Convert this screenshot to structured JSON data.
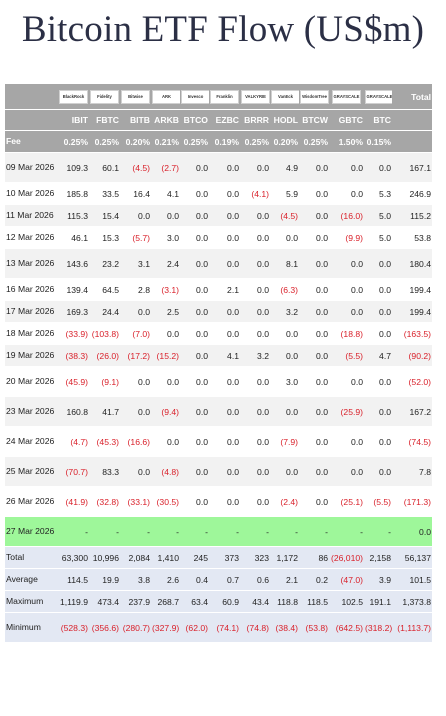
{
  "title": "Bitcoin ETF Flow (US$m)",
  "chart_data": {
    "type": "table",
    "header_total": "Total",
    "fee_label": "Fee",
    "columns": [
      {
        "ticker": "IBIT",
        "logo": "BlackRock",
        "fee": "0.25%"
      },
      {
        "ticker": "FBTC",
        "logo": "Fidelity",
        "fee": "0.25%"
      },
      {
        "ticker": "BITB",
        "logo": "Bitwise",
        "fee": "0.20%"
      },
      {
        "ticker": "ARKB",
        "logo": "ARK",
        "fee": "0.21%"
      },
      {
        "ticker": "BTCO",
        "logo": "Invesco",
        "fee": "0.25%"
      },
      {
        "ticker": "EZBC",
        "logo": "Franklin",
        "fee": "0.19%"
      },
      {
        "ticker": "BRRR",
        "logo": "VALKYRIE",
        "fee": "0.25%"
      },
      {
        "ticker": "HODL",
        "logo": "VanEck",
        "fee": "0.20%"
      },
      {
        "ticker": "BTCW",
        "logo": "WisdomTree",
        "fee": "0.25%"
      },
      {
        "ticker": "GBTC",
        "logo": "GRAYSCALE",
        "fee": "1.50%"
      },
      {
        "ticker": "BTC",
        "logo": "GRAYSCALE",
        "fee": "0.15%"
      }
    ],
    "rows": [
      {
        "date": "09 Mar 2026",
        "values": [
          "109.3",
          "60.1",
          "(4.5)",
          "(2.7)",
          "0.0",
          "0.0",
          "0.0",
          "4.9",
          "0.0",
          "0.0",
          "0.0"
        ],
        "total": "167.1"
      },
      {
        "date": "10 Mar 2026",
        "values": [
          "185.8",
          "33.5",
          "16.4",
          "4.1",
          "0.0",
          "0.0",
          "(4.1)",
          "5.9",
          "0.0",
          "0.0",
          "5.3"
        ],
        "total": "246.9"
      },
      {
        "date": "11 Mar 2026",
        "values": [
          "115.3",
          "15.4",
          "0.0",
          "0.0",
          "0.0",
          "0.0",
          "0.0",
          "(4.5)",
          "0.0",
          "(16.0)",
          "5.0"
        ],
        "total": "115.2"
      },
      {
        "date": "12 Mar 2026",
        "values": [
          "46.1",
          "15.3",
          "(5.7)",
          "3.0",
          "0.0",
          "0.0",
          "0.0",
          "0.0",
          "0.0",
          "(9.9)",
          "5.0"
        ],
        "total": "53.8"
      },
      {
        "date": "13 Mar 2026",
        "values": [
          "143.6",
          "23.2",
          "3.1",
          "2.4",
          "0.0",
          "0.0",
          "0.0",
          "8.1",
          "0.0",
          "0.0",
          "0.0"
        ],
        "total": "180.4"
      },
      {
        "date": "16 Mar 2026",
        "values": [
          "139.4",
          "64.5",
          "2.8",
          "(3.1)",
          "0.0",
          "2.1",
          "0.0",
          "(6.3)",
          "0.0",
          "0.0",
          "0.0"
        ],
        "total": "199.4"
      },
      {
        "date": "17 Mar 2026",
        "values": [
          "169.3",
          "24.4",
          "0.0",
          "2.5",
          "0.0",
          "0.0",
          "0.0",
          "3.2",
          "0.0",
          "0.0",
          "0.0"
        ],
        "total": "199.4"
      },
      {
        "date": "18 Mar 2026",
        "values": [
          "(33.9)",
          "(103.8)",
          "(7.0)",
          "0.0",
          "0.0",
          "0.0",
          "0.0",
          "0.0",
          "0.0",
          "(18.8)",
          "0.0"
        ],
        "total": "(163.5)"
      },
      {
        "date": "19 Mar 2026",
        "values": [
          "(38.3)",
          "(26.0)",
          "(17.2)",
          "(15.2)",
          "0.0",
          "4.1",
          "3.2",
          "0.0",
          "0.0",
          "(5.5)",
          "4.7"
        ],
        "total": "(90.2)"
      },
      {
        "date": "20 Mar 2026",
        "values": [
          "(45.9)",
          "(9.1)",
          "0.0",
          "0.0",
          "0.0",
          "0.0",
          "0.0",
          "3.0",
          "0.0",
          "0.0",
          "0.0"
        ],
        "total": "(52.0)"
      },
      {
        "date": "23 Mar 2026",
        "values": [
          "160.8",
          "41.7",
          "0.0",
          "(9.4)",
          "0.0",
          "0.0",
          "0.0",
          "0.0",
          "0.0",
          "(25.9)",
          "0.0"
        ],
        "total": "167.2"
      },
      {
        "date": "24 Mar 2026",
        "values": [
          "(4.7)",
          "(45.3)",
          "(16.6)",
          "0.0",
          "0.0",
          "0.0",
          "0.0",
          "(7.9)",
          "0.0",
          "0.0",
          "0.0"
        ],
        "total": "(74.5)"
      },
      {
        "date": "25 Mar 2026",
        "values": [
          "(70.7)",
          "83.3",
          "0.0",
          "(4.8)",
          "0.0",
          "0.0",
          "0.0",
          "0.0",
          "0.0",
          "0.0",
          "0.0"
        ],
        "total": "7.8"
      },
      {
        "date": "26 Mar 2026",
        "values": [
          "(41.9)",
          "(32.8)",
          "(33.1)",
          "(30.5)",
          "0.0",
          "0.0",
          "0.0",
          "(2.4)",
          "0.0",
          "(25.1)",
          "(5.5)"
        ],
        "total": "(171.3)"
      },
      {
        "date": "27 Mar 2026",
        "values": [
          "-",
          "-",
          "-",
          "-",
          "-",
          "-",
          "-",
          "-",
          "-",
          "-",
          "-"
        ],
        "total": "0.0",
        "highlight": true
      }
    ],
    "summary": [
      {
        "label": "Total",
        "values": [
          "63,300",
          "10,996",
          "2,084",
          "1,410",
          "245",
          "373",
          "323",
          "1,172",
          "86",
          "(26,010)",
          "2,158"
        ],
        "total": "56,137"
      },
      {
        "label": "Average",
        "values": [
          "114.5",
          "19.9",
          "3.8",
          "2.6",
          "0.4",
          "0.7",
          "0.6",
          "2.1",
          "0.2",
          "(47.0)",
          "3.9"
        ],
        "total": "101.5"
      },
      {
        "label": "Maximum",
        "values": [
          "1,119.9",
          "473.4",
          "237.9",
          "268.7",
          "63.4",
          "60.9",
          "43.4",
          "118.8",
          "118.5",
          "102.5",
          "191.1"
        ],
        "total": "1,373.8"
      },
      {
        "label": "Minimum",
        "values": [
          "(528.3)",
          "(356.6)",
          "(280.7)",
          "(327.9)",
          "(62.0)",
          "(74.1)",
          "(74.8)",
          "(38.4)",
          "(53.8)",
          "(642.5)",
          "(318.2)"
        ],
        "total": "(1,113.7)"
      }
    ]
  }
}
